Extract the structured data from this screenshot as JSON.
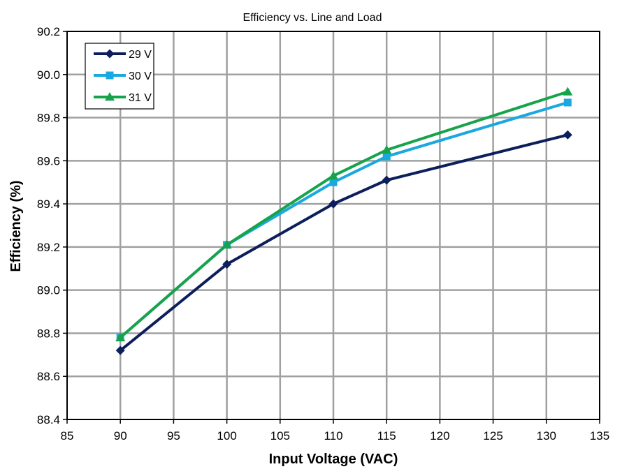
{
  "chart_data": {
    "type": "line",
    "title": "Efficiency vs. Line and Load",
    "xlabel": "Input Voltage (VAC)",
    "ylabel": "Efficiency (%)",
    "xlim": [
      85,
      135
    ],
    "ylim": [
      88.4,
      90.2
    ],
    "x_ticks": [
      85,
      90,
      95,
      100,
      105,
      110,
      115,
      120,
      125,
      130,
      135
    ],
    "y_ticks": [
      "88.4",
      "88.6",
      "88.8",
      "89.0",
      "89.2",
      "89.4",
      "89.6",
      "89.8",
      "90.0",
      "90.2"
    ],
    "grid": true,
    "legend_position": "top-left",
    "series": [
      {
        "name": "29 V",
        "color": "#0d1e5c",
        "marker": "diamond",
        "x": [
          90,
          100,
          110,
          115,
          132
        ],
        "y": [
          88.72,
          89.12,
          89.4,
          89.51,
          89.72
        ]
      },
      {
        "name": "30 V",
        "color": "#1aa8e0",
        "marker": "square",
        "x": [
          90,
          100,
          110,
          115,
          132
        ],
        "y": [
          88.78,
          89.21,
          89.5,
          89.62,
          89.87
        ]
      },
      {
        "name": "31 V",
        "color": "#16a34a",
        "marker": "triangle",
        "x": [
          90,
          100,
          110,
          115,
          132
        ],
        "y": [
          88.78,
          89.21,
          89.53,
          89.65,
          89.92
        ]
      }
    ]
  }
}
